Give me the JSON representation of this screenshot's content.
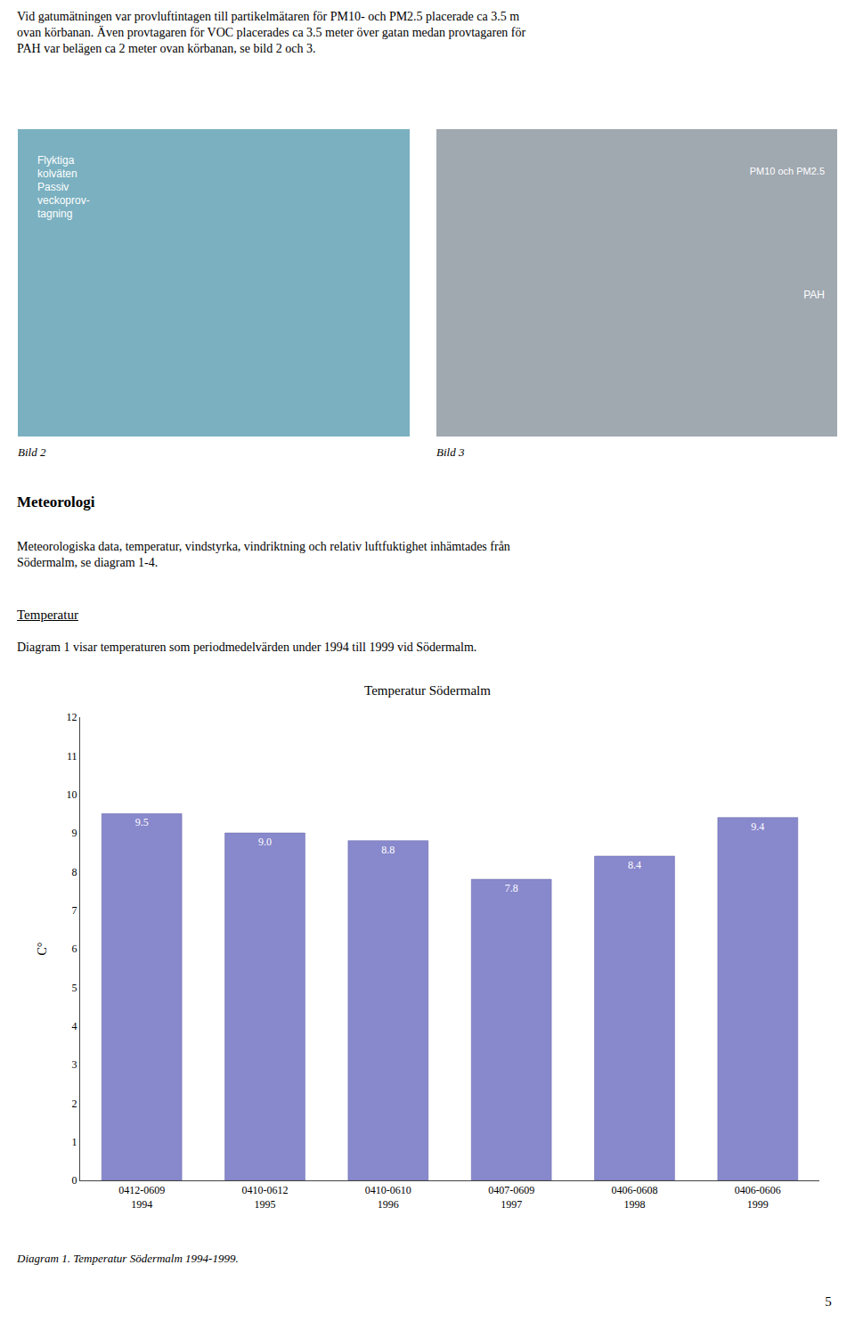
{
  "chart_data": {
    "type": "bar",
    "title": "Temperatur Södermalm",
    "y_label": "C°",
    "categories": [
      "0412-0609\n1994",
      "0410-0612\n1995",
      "0410-0610\n1996",
      "0407-0609\n1997",
      "0406-0608\n1998",
      "0406-0606\n1999"
    ],
    "values": [
      9.5,
      9.0,
      8.8,
      7.8,
      8.4,
      9.4
    ],
    "value_labels": [
      "9.5",
      "9.0",
      "8.8",
      "7.8",
      "8.4",
      "9.4"
    ],
    "data_labels": true,
    "color": "#8888cc",
    "ylim": [
      0,
      12
    ],
    "yticks": [
      0,
      1,
      2,
      3,
      4,
      5,
      6,
      7,
      8,
      9,
      10,
      11,
      12
    ],
    "grid": false,
    "annotations": [
      "Vid gatumätningen var provluftintagen till partikelmätaren för PM10- och PM2.5 placerade ca 3.5 m\novan körbanan. Även provtagaren för VOC placerades ca 3.5 meter över gatan medan provtagaren för\nPAH var belägen ca 2 meter ovan körbanan, se bild 2 och 3.",
      "Flyktiga\nkolväten\nPassiv\nveckoprov-\ntagning",
      "PM10 och PM2.5",
      "PAH",
      "Bild 2",
      "Bild 3",
      "Meteorologi",
      "Meteorologiska data, temperatur, vindstyrka, vindriktning och relativ luftfuktighet inhämtades från\nSödermalm, se diagram 1-4.",
      "Temperatur",
      "Diagram 1 visar temperaturen som periodmedelvärden under 1994 till 1999 vid Södermalm.",
      "Diagram 1. Temperatur Södermalm  1994-1999.",
      "5"
    ]
  }
}
